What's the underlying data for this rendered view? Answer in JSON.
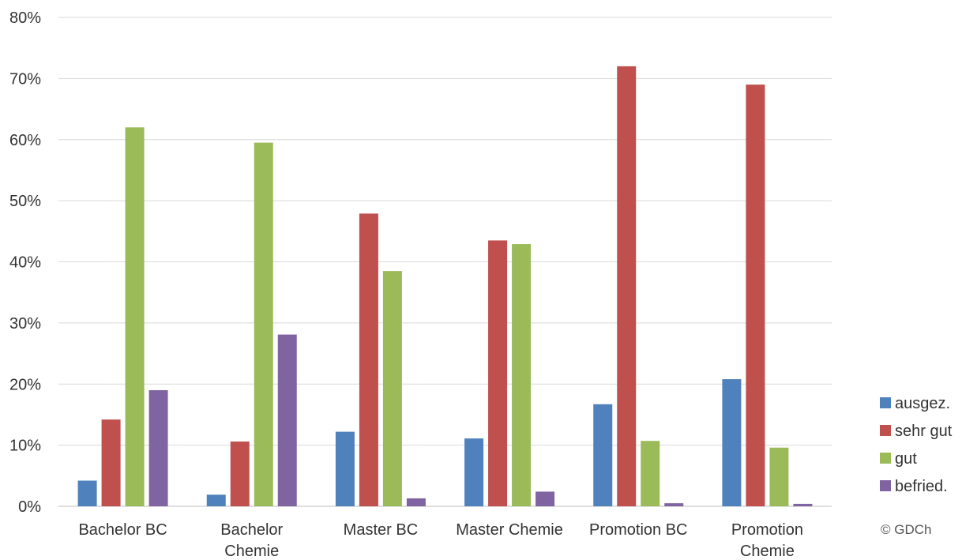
{
  "chart_data": {
    "type": "bar",
    "categories": [
      [
        "Bachelor BC"
      ],
      [
        "Bachelor",
        "Chemie"
      ],
      [
        "Master BC"
      ],
      [
        "Master Chemie"
      ],
      [
        "Promotion BC"
      ],
      [
        "Promotion",
        "Chemie"
      ]
    ],
    "series": [
      {
        "name": "ausgez.",
        "color": "#4f81bd",
        "values": [
          4.2,
          1.9,
          12.2,
          11.1,
          16.7,
          20.8
        ]
      },
      {
        "name": "sehr gut",
        "color": "#c0504d",
        "values": [
          14.2,
          10.6,
          47.9,
          43.5,
          72.0,
          69.0
        ]
      },
      {
        "name": "gut",
        "color": "#9bbb59",
        "values": [
          62.0,
          59.5,
          38.5,
          42.9,
          10.7,
          9.6
        ]
      },
      {
        "name": "befried.",
        "color": "#8064a2",
        "values": [
          19.0,
          28.1,
          1.3,
          2.4,
          0.5,
          0.4
        ]
      }
    ],
    "ylim": [
      0,
      80
    ],
    "yticks": [
      "0%",
      "10%",
      "20%",
      "30%",
      "40%",
      "50%",
      "60%",
      "70%",
      "80%"
    ],
    "ytick_values": [
      0,
      10,
      20,
      30,
      40,
      50,
      60,
      70,
      80
    ],
    "grid": true,
    "legend_position": "right-bottom",
    "title": "",
    "xlabel": "",
    "ylabel": ""
  },
  "copyright": "© GDCh"
}
